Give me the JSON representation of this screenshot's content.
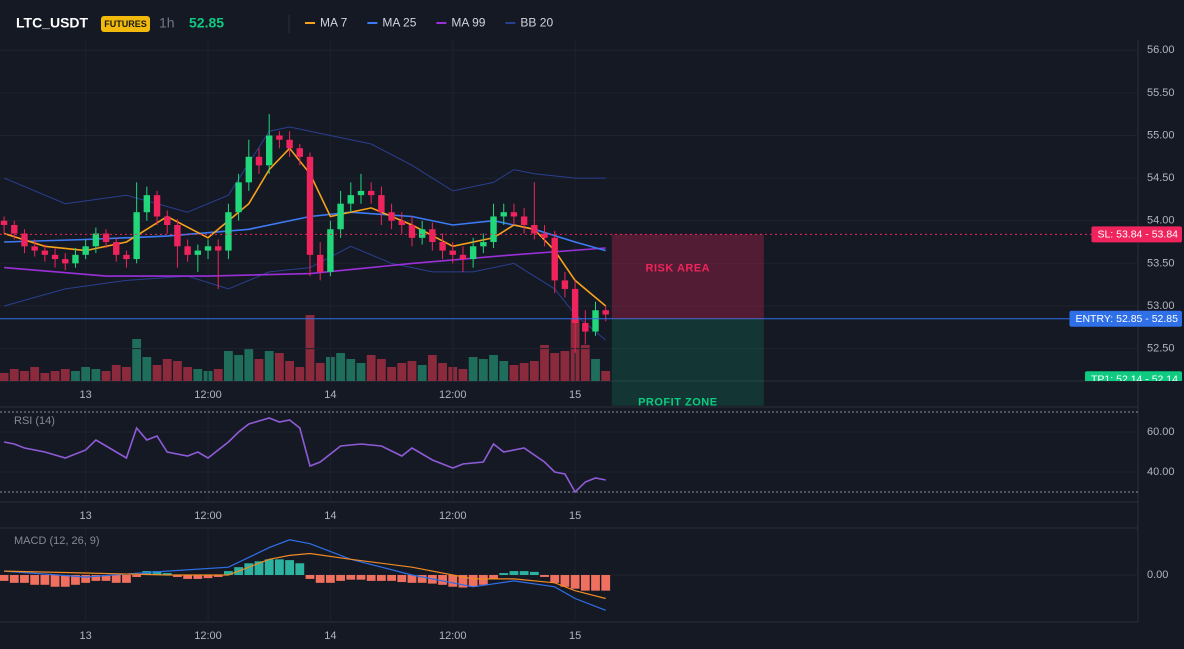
{
  "header": {
    "symbol": "LTC_USDT",
    "badge": "FUTURES",
    "interval": "1h",
    "price": "52.85"
  },
  "time_axis": {
    "xlim": [
      -0.4,
      111.2
    ],
    "xticks": [
      {
        "value": 8,
        "label": "13"
      },
      {
        "value": 20,
        "label": "12:00"
      },
      {
        "value": 32,
        "label": "14"
      },
      {
        "value": 44,
        "label": "12:00"
      },
      {
        "value": 56,
        "label": "15"
      }
    ]
  },
  "chart_data": [
    {
      "type": "candlestick",
      "up_color": "#22d67a",
      "down_color": "#f0245c",
      "open": [
        54.0,
        53.95,
        53.85,
        53.7,
        53.65,
        53.6,
        53.55,
        53.5,
        53.6,
        53.7,
        53.85,
        53.75,
        53.6,
        53.55,
        54.1,
        54.3,
        54.05,
        53.95,
        53.7,
        53.6,
        53.65,
        53.7,
        53.65,
        54.1,
        54.45,
        54.75,
        54.65,
        55.0,
        54.95,
        54.85,
        54.75,
        53.6,
        53.4,
        53.9,
        54.2,
        54.3,
        54.35,
        54.3,
        54.1,
        54.0,
        53.95,
        53.8,
        53.9,
        53.75,
        53.65,
        53.6,
        53.55,
        53.7,
        53.75,
        54.05,
        54.1,
        54.05,
        53.95,
        53.85,
        53.8,
        53.3,
        53.2,
        52.8,
        52.7,
        52.95
      ],
      "high": [
        54.05,
        54.0,
        53.9,
        53.78,
        53.72,
        53.68,
        53.62,
        53.68,
        53.78,
        53.92,
        53.9,
        53.8,
        53.65,
        54.45,
        54.4,
        54.35,
        54.12,
        54.02,
        53.78,
        53.72,
        53.78,
        53.78,
        54.2,
        54.55,
        54.95,
        54.85,
        55.25,
        55.05,
        55.05,
        54.9,
        54.8,
        53.75,
        54.0,
        54.35,
        54.45,
        54.55,
        54.45,
        54.4,
        54.2,
        54.1,
        54.05,
        54.0,
        53.98,
        53.85,
        53.75,
        53.7,
        53.8,
        53.85,
        54.2,
        54.2,
        54.2,
        54.15,
        54.45,
        53.95,
        53.88,
        53.4,
        53.3,
        52.95,
        53.05,
        53.0
      ],
      "low": [
        53.85,
        53.78,
        53.62,
        53.58,
        53.52,
        53.45,
        53.42,
        53.45,
        53.55,
        53.62,
        53.68,
        53.52,
        53.45,
        53.5,
        54.0,
        53.95,
        53.85,
        53.45,
        53.52,
        53.4,
        53.55,
        53.2,
        53.55,
        54.0,
        54.35,
        54.55,
        54.55,
        54.85,
        54.75,
        54.65,
        53.35,
        53.3,
        53.35,
        53.8,
        54.1,
        54.2,
        54.2,
        53.95,
        53.9,
        53.85,
        53.7,
        53.72,
        53.65,
        53.55,
        53.5,
        53.4,
        53.45,
        53.62,
        53.68,
        53.95,
        53.95,
        53.85,
        53.78,
        53.7,
        53.15,
        53.1,
        52.45,
        52.55,
        52.65,
        52.82
      ],
      "close": [
        53.95,
        53.85,
        53.7,
        53.65,
        53.6,
        53.55,
        53.5,
        53.6,
        53.7,
        53.85,
        53.75,
        53.6,
        53.55,
        54.1,
        54.3,
        54.05,
        53.95,
        53.7,
        53.6,
        53.65,
        53.7,
        53.65,
        54.1,
        54.45,
        54.75,
        54.65,
        55.0,
        54.95,
        54.85,
        54.75,
        53.6,
        53.4,
        53.9,
        54.2,
        54.3,
        54.35,
        54.3,
        54.1,
        54.0,
        53.95,
        53.8,
        53.9,
        53.75,
        53.65,
        53.6,
        53.55,
        53.7,
        53.75,
        54.05,
        54.1,
        54.05,
        53.95,
        53.85,
        53.8,
        53.3,
        53.2,
        52.8,
        52.7,
        52.95,
        52.9
      ],
      "ylim": [
        52.12,
        56.12
      ],
      "yticks": [
        {
          "value": 56,
          "label": "56.00"
        },
        {
          "value": 55.5,
          "label": "55.50"
        },
        {
          "value": 55,
          "label": "55.00"
        },
        {
          "value": 54.5,
          "label": "54.50"
        },
        {
          "value": 54,
          "label": "54.00"
        },
        {
          "value": 53.5,
          "label": "53.50"
        },
        {
          "value": 53,
          "label": "53.00"
        },
        {
          "value": 52.5,
          "label": "52.50"
        }
      ],
      "grid": true,
      "series": [
        {
          "name": "MA 7",
          "color": "#f7a21b",
          "x": [
            0,
            4,
            8,
            12,
            16,
            20,
            24,
            26,
            28,
            30,
            32,
            36,
            40,
            44,
            48,
            50,
            52,
            54,
            56,
            58,
            59
          ],
          "values": [
            53.85,
            53.7,
            53.65,
            53.75,
            54.05,
            53.8,
            54.2,
            54.6,
            54.85,
            54.55,
            54.05,
            54.15,
            53.95,
            53.7,
            53.8,
            53.95,
            53.9,
            53.65,
            53.3,
            53.1,
            53.0
          ]
        },
        {
          "name": "MA 25",
          "color": "#3d7bf5",
          "x": [
            0,
            8,
            16,
            24,
            30,
            34,
            40,
            44,
            48,
            52,
            56,
            59
          ],
          "values": [
            53.75,
            53.78,
            53.82,
            53.9,
            54.05,
            54.1,
            54.05,
            53.95,
            54.0,
            53.9,
            53.75,
            53.65
          ]
        },
        {
          "name": "MA 99",
          "color": "#9b30d9",
          "x": [
            0,
            10,
            20,
            30,
            40,
            50,
            59
          ],
          "values": [
            53.45,
            53.35,
            53.35,
            53.38,
            53.5,
            53.6,
            53.68
          ]
        },
        {
          "name": "BB 20",
          "color": "#2a3f8f",
          "x": [
            0,
            6,
            12,
            18,
            22,
            26,
            28,
            32,
            36,
            40,
            44,
            48,
            50,
            52,
            56,
            59
          ],
          "values": [
            54.5,
            54.2,
            54.3,
            54.1,
            54.3,
            55.05,
            55.1,
            55.0,
            54.9,
            54.65,
            54.35,
            54.45,
            54.6,
            54.55,
            54.5,
            54.5
          ],
          "lower": {
            "x": [
              0,
              6,
              12,
              18,
              22,
              26,
              30,
              34,
              38,
              42,
              46,
              50,
              54,
              56,
              59
            ],
            "values": [
              53.0,
              53.2,
              53.3,
              53.35,
              53.2,
              53.4,
              53.45,
              53.7,
              53.5,
              53.4,
              53.4,
              53.5,
              53.2,
              52.9,
              52.6
            ]
          }
        }
      ],
      "levels": [
        {
          "label": "SL: 53.84 - 53.84",
          "value": 53.84,
          "color": "#f0245c",
          "dashed": true
        },
        {
          "label": "ENTRY: 52.85 - 52.85",
          "value": 52.85,
          "color": "#2f6fe8",
          "dashed": false
        },
        {
          "label": "TP1: 52.14 - 52.14",
          "value": 52.14,
          "color": "#0ecb81",
          "dashed": false
        }
      ],
      "zones": [
        {
          "label": "RISK AREA",
          "from": 53.84,
          "to": 52.85,
          "color": "#f0245c"
        },
        {
          "label": "PROFIT ZONE",
          "from": 52.85,
          "to": 51.83,
          "color": "#0ecb81"
        }
      ]
    },
    {
      "type": "volume",
      "values": [
        8,
        12,
        10,
        14,
        8,
        10,
        12,
        10,
        14,
        12,
        10,
        16,
        14,
        42,
        24,
        16,
        22,
        20,
        14,
        12,
        10,
        12,
        30,
        26,
        32,
        22,
        30,
        28,
        20,
        14,
        66,
        18,
        24,
        28,
        22,
        18,
        26,
        22,
        14,
        18,
        20,
        16,
        26,
        18,
        14,
        12,
        24,
        22,
        26,
        20,
        16,
        18,
        20,
        36,
        28,
        30,
        62,
        36,
        22,
        10
      ],
      "ylim": [
        0,
        100
      ]
    },
    {
      "type": "line",
      "title": "RSI (14)",
      "color": "#8e5bd6",
      "x": [
        0,
        1,
        2,
        4,
        6,
        8,
        9,
        10,
        12,
        13,
        14,
        15,
        16,
        18,
        19,
        20,
        22,
        23,
        24,
        26,
        27,
        28,
        29,
        30,
        31,
        33,
        35,
        37,
        39,
        40,
        42,
        44,
        45,
        47,
        48,
        49,
        51,
        53,
        54,
        55,
        56,
        57,
        58,
        59
      ],
      "values": [
        55,
        54,
        52,
        50,
        47,
        51,
        56,
        53,
        47,
        62,
        56,
        58,
        50,
        48,
        50,
        47,
        55,
        60,
        64,
        67,
        65,
        66,
        62,
        43,
        45,
        53,
        54,
        53,
        48,
        52,
        46,
        42,
        44,
        45,
        54,
        50,
        52,
        45,
        40,
        39,
        30,
        35,
        37,
        36
      ],
      "ylim": [
        26,
        70
      ],
      "yticks": [
        {
          "value": 60,
          "label": "60.00"
        },
        {
          "value": 40,
          "label": "40.00"
        }
      ],
      "bands": [
        70,
        30
      ]
    },
    {
      "type": "macd",
      "title": "MACD (12, 26, 9)",
      "up_color": "#2bb3a0",
      "down_color": "#f0705f",
      "histogram": [
        -0.015,
        -0.02,
        -0.02,
        -0.025,
        -0.025,
        -0.03,
        -0.03,
        -0.025,
        -0.02,
        -0.015,
        -0.015,
        -0.02,
        -0.02,
        -0.005,
        0.01,
        0.01,
        0.005,
        -0.005,
        -0.01,
        -0.01,
        -0.008,
        -0.005,
        0.01,
        0.02,
        0.03,
        0.035,
        0.04,
        0.04,
        0.038,
        0.03,
        -0.01,
        -0.02,
        -0.02,
        -0.015,
        -0.012,
        -0.012,
        -0.015,
        -0.015,
        -0.015,
        -0.018,
        -0.02,
        -0.02,
        -0.022,
        -0.025,
        -0.03,
        -0.032,
        -0.03,
        -0.025,
        -0.01,
        0.005,
        0.01,
        0.01,
        0.008,
        -0.005,
        -0.02,
        -0.03,
        -0.035,
        -0.04,
        -0.04,
        -0.04
      ],
      "series": [
        {
          "color": "#2f6fe8",
          "x": [
            0,
            8,
            16,
            22,
            26,
            28,
            30,
            34,
            40,
            46,
            50,
            54,
            56,
            59
          ],
          "values": [
            0.01,
            -0.005,
            0.01,
            0.02,
            0.07,
            0.09,
            0.08,
            0.04,
            0.0,
            -0.03,
            -0.015,
            -0.03,
            -0.06,
            -0.09
          ]
        },
        {
          "color": "#f08a24",
          "x": [
            0,
            8,
            16,
            22,
            26,
            28,
            30,
            34,
            40,
            46,
            50,
            54,
            56,
            59
          ],
          "values": [
            0.01,
            0.005,
            0.0,
            0.0,
            0.04,
            0.05,
            0.055,
            0.04,
            0.02,
            -0.01,
            -0.01,
            -0.02,
            -0.04,
            -0.06
          ]
        }
      ],
      "ylim": [
        -0.12,
        0.12
      ],
      "yticks": [
        {
          "value": 0,
          "label": "0.00"
        }
      ]
    }
  ]
}
